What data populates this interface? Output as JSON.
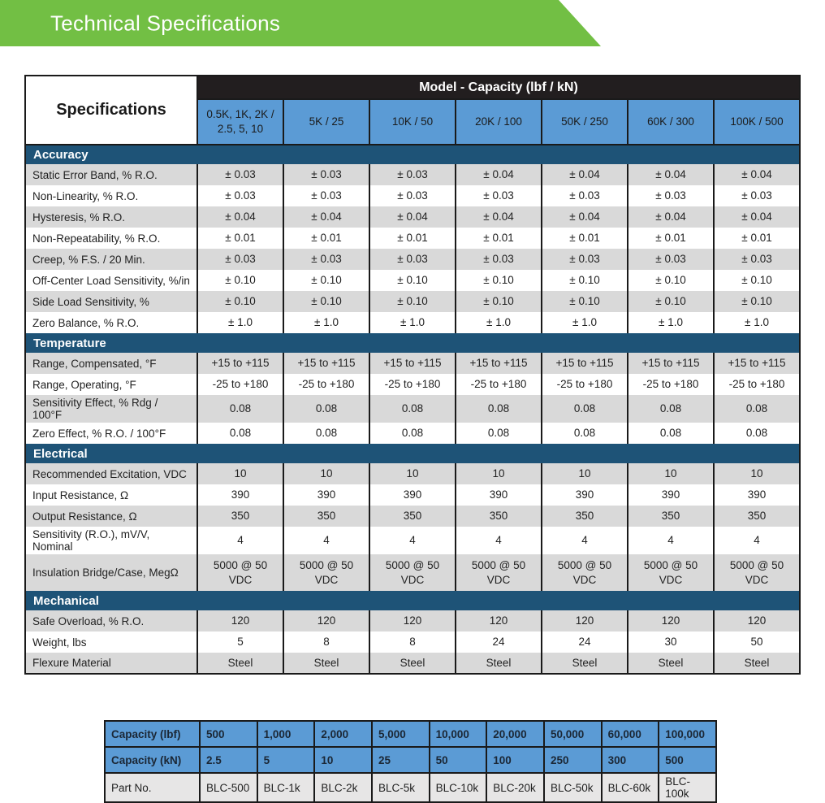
{
  "banner": {
    "title": "Technical Specifications"
  },
  "colors": {
    "banner_green": "#72BF44",
    "model_header_black": "#221E1F",
    "column_header_blue": "#5B9BD5",
    "section_bar_blue": "#1E5377",
    "row_gray": "#D9D9D9",
    "part_row_gray": "#E7E6E6"
  },
  "table": {
    "corner_label": "Specifications",
    "model_header": "Model - Capacity (lbf / kN)",
    "columns": [
      "0.5K, 1K, 2K / 2.5, 5, 10",
      "5K / 25",
      "10K / 50",
      "20K / 100",
      "50K / 250",
      "60K / 300",
      "100K / 500"
    ],
    "sections": [
      {
        "title": "Accuracy",
        "rows": [
          {
            "label": "Static Error Band, % R.O.",
            "values": [
              "± 0.03",
              "± 0.03",
              "± 0.03",
              "± 0.04",
              "± 0.04",
              "± 0.04",
              "± 0.04"
            ]
          },
          {
            "label": "Non-Linearity, % R.O.",
            "values": [
              "± 0.03",
              "± 0.03",
              "± 0.03",
              "± 0.03",
              "± 0.03",
              "± 0.03",
              "± 0.03"
            ]
          },
          {
            "label": "Hysteresis, % R.O.",
            "values": [
              "± 0.04",
              "± 0.04",
              "± 0.04",
              "± 0.04",
              "± 0.04",
              "± 0.04",
              "± 0.04"
            ]
          },
          {
            "label": "Non-Repeatability, % R.O.",
            "values": [
              "± 0.01",
              "± 0.01",
              "± 0.01",
              "± 0.01",
              "± 0.01",
              "± 0.01",
              "± 0.01"
            ]
          },
          {
            "label": "Creep, % F.S. / 20 Min.",
            "values": [
              "± 0.03",
              "± 0.03",
              "± 0.03",
              "± 0.03",
              "± 0.03",
              "± 0.03",
              "± 0.03"
            ]
          },
          {
            "label": "Off-Center Load Sensitivity, %/in",
            "values": [
              "± 0.10",
              "± 0.10",
              "± 0.10",
              "± 0.10",
              "± 0.10",
              "± 0.10",
              "± 0.10"
            ]
          },
          {
            "label": "Side Load Sensitivity, %",
            "values": [
              "± 0.10",
              "± 0.10",
              "± 0.10",
              "± 0.10",
              "± 0.10",
              "± 0.10",
              "± 0.10"
            ]
          },
          {
            "label": "Zero Balance, % R.O.",
            "values": [
              "± 1.0",
              "± 1.0",
              "± 1.0",
              "± 1.0",
              "± 1.0",
              "± 1.0",
              "± 1.0"
            ]
          }
        ]
      },
      {
        "title": "Temperature",
        "rows": [
          {
            "label": "Range, Compensated, °F",
            "values": [
              "+15 to +115",
              "+15 to +115",
              "+15 to +115",
              "+15 to +115",
              "+15 to +115",
              "+15 to +115",
              "+15 to +115"
            ]
          },
          {
            "label": "Range, Operating, °F",
            "values": [
              "-25 to +180",
              "-25 to +180",
              "-25 to +180",
              "-25 to +180",
              "-25 to +180",
              "-25 to +180",
              "-25 to +180"
            ]
          },
          {
            "label": "Sensitivity Effect, % Rdg / 100°F",
            "values": [
              "0.08",
              "0.08",
              "0.08",
              "0.08",
              "0.08",
              "0.08",
              "0.08"
            ]
          },
          {
            "label": "Zero Effect, % R.O. / 100°F",
            "values": [
              "0.08",
              "0.08",
              "0.08",
              "0.08",
              "0.08",
              "0.08",
              "0.08"
            ]
          }
        ]
      },
      {
        "title": "Electrical",
        "rows": [
          {
            "label": "Recommended Excitation, VDC",
            "values": [
              "10",
              "10",
              "10",
              "10",
              "10",
              "10",
              "10"
            ]
          },
          {
            "label": "Input Resistance, Ω",
            "values": [
              "390",
              "390",
              "390",
              "390",
              "390",
              "390",
              "390"
            ]
          },
          {
            "label": "Output Resistance, Ω",
            "values": [
              "350",
              "350",
              "350",
              "350",
              "350",
              "350",
              "350"
            ]
          },
          {
            "label": "Sensitivity (R.O.), mV/V, Nominal",
            "values": [
              "4",
              "4",
              "4",
              "4",
              "4",
              "4",
              "4"
            ]
          },
          {
            "label": "Insulation Bridge/Case, MegΩ",
            "tall": true,
            "values": [
              "5000 @ 50 VDC",
              "5000 @ 50 VDC",
              "5000 @ 50 VDC",
              "5000 @ 50 VDC",
              "5000 @ 50 VDC",
              "5000 @ 50 VDC",
              "5000 @ 50 VDC"
            ]
          }
        ]
      },
      {
        "title": "Mechanical",
        "rows": [
          {
            "label": "Safe Overload, % R.O.",
            "values": [
              "120",
              "120",
              "120",
              "120",
              "120",
              "120",
              "120"
            ]
          },
          {
            "label": "Weight, lbs",
            "values": [
              "5",
              "8",
              "8",
              "24",
              "24",
              "30",
              "50"
            ]
          },
          {
            "label": "Flexure Material",
            "values": [
              "Steel",
              "Steel",
              "Steel",
              "Steel",
              "Steel",
              "Steel",
              "Steel"
            ]
          }
        ]
      }
    ]
  },
  "capacity_table": {
    "rows": [
      {
        "label": "Capacity (lbf)",
        "style": "blue",
        "values": [
          "500",
          "1,000",
          "2,000",
          "5,000",
          "10,000",
          "20,000",
          "50,000",
          "60,000",
          "100,000"
        ]
      },
      {
        "label": "Capacity (kN)",
        "style": "blue",
        "values": [
          "2.5",
          "5",
          "10",
          "25",
          "50",
          "100",
          "250",
          "300",
          "500"
        ]
      },
      {
        "label": "Part No.",
        "style": "grayrow",
        "values": [
          "BLC-500",
          "BLC-1k",
          "BLC-2k",
          "BLC-5k",
          "BLC-10k",
          "BLC-20k",
          "BLC-50k",
          "BLC-60k",
          "BLC-100k"
        ]
      }
    ]
  }
}
